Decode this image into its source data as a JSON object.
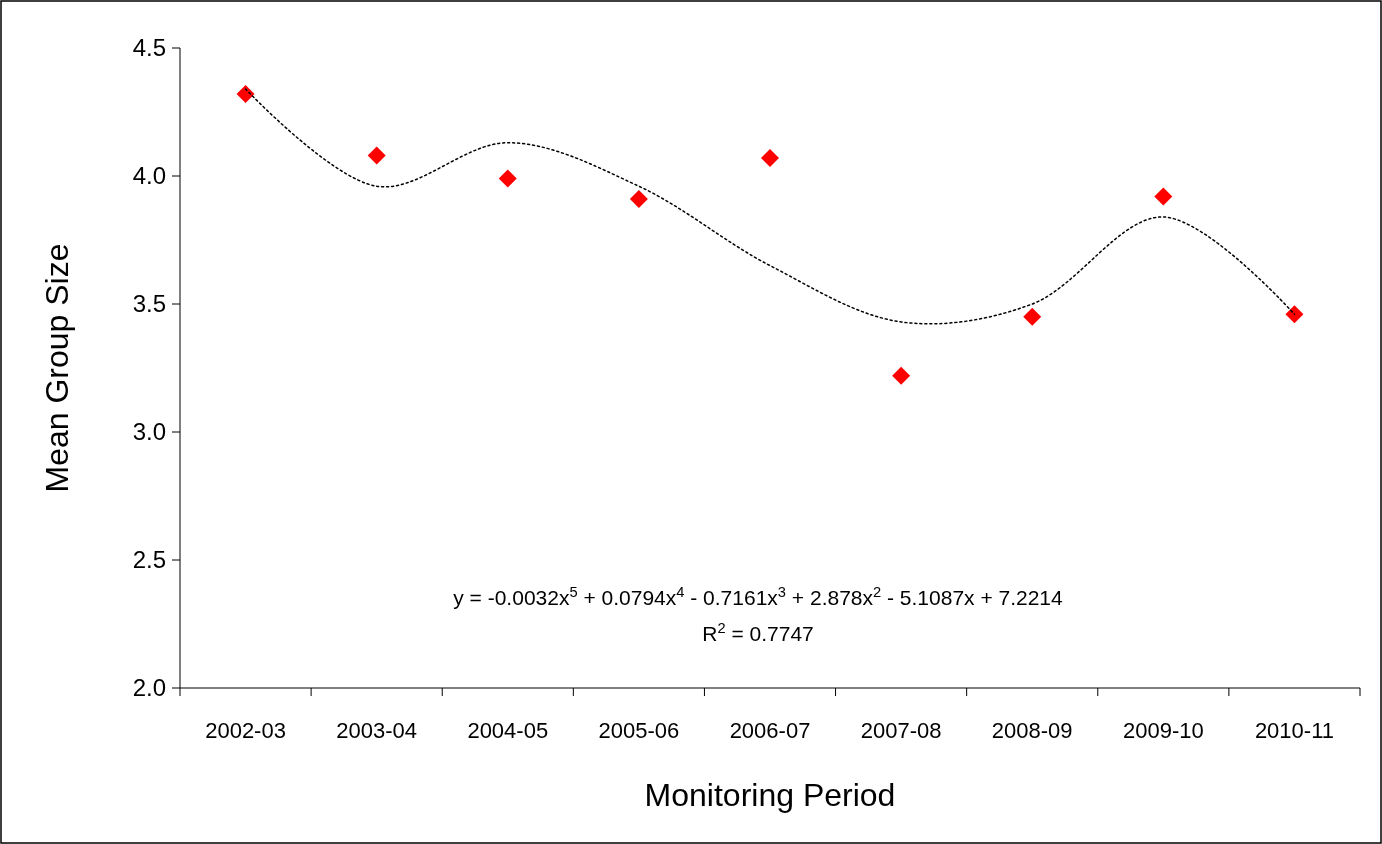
{
  "chart_data": {
    "type": "scatter",
    "xlabel": "Monitoring Period",
    "ylabel": "Mean Group Size",
    "categories": [
      "2002-03",
      "2003-04",
      "2004-05",
      "2005-06",
      "2006-07",
      "2007-08",
      "2008-09",
      "2009-10",
      "2010-11"
    ],
    "series": [
      {
        "color": "#ff0000",
        "marker": "diamond",
        "values": [
          4.32,
          4.08,
          3.99,
          3.91,
          4.07,
          3.22,
          3.45,
          3.92,
          3.46
        ]
      },
      {
        "type": "line",
        "color": "#000000",
        "line_style": "dotted",
        "marker": "none",
        "values": [
          4.34,
          3.96,
          4.13,
          3.96,
          3.65,
          3.43,
          3.5,
          3.84,
          3.46
        ]
      }
    ],
    "ylim": [
      2.0,
      4.5
    ],
    "yticks": [
      {
        "value": 2,
        "label": "2.0"
      },
      {
        "value": 2.5,
        "label": "2.5"
      },
      {
        "value": 3,
        "label": "3.0"
      },
      {
        "value": 3.5,
        "label": "3.5"
      },
      {
        "value": 4,
        "label": "4.0"
      },
      {
        "value": 4.5,
        "label": "4.5"
      }
    ],
    "grid": false,
    "annotations": [
      "y = -0.0032x$^{5}$ + 0.0794x$^{4}$ - 0.7161x$^{3}$ + 2.878x$^{2}$ - 5.1087x + 7.2214",
      "R$^{2}$ = 0.7747"
    ]
  }
}
